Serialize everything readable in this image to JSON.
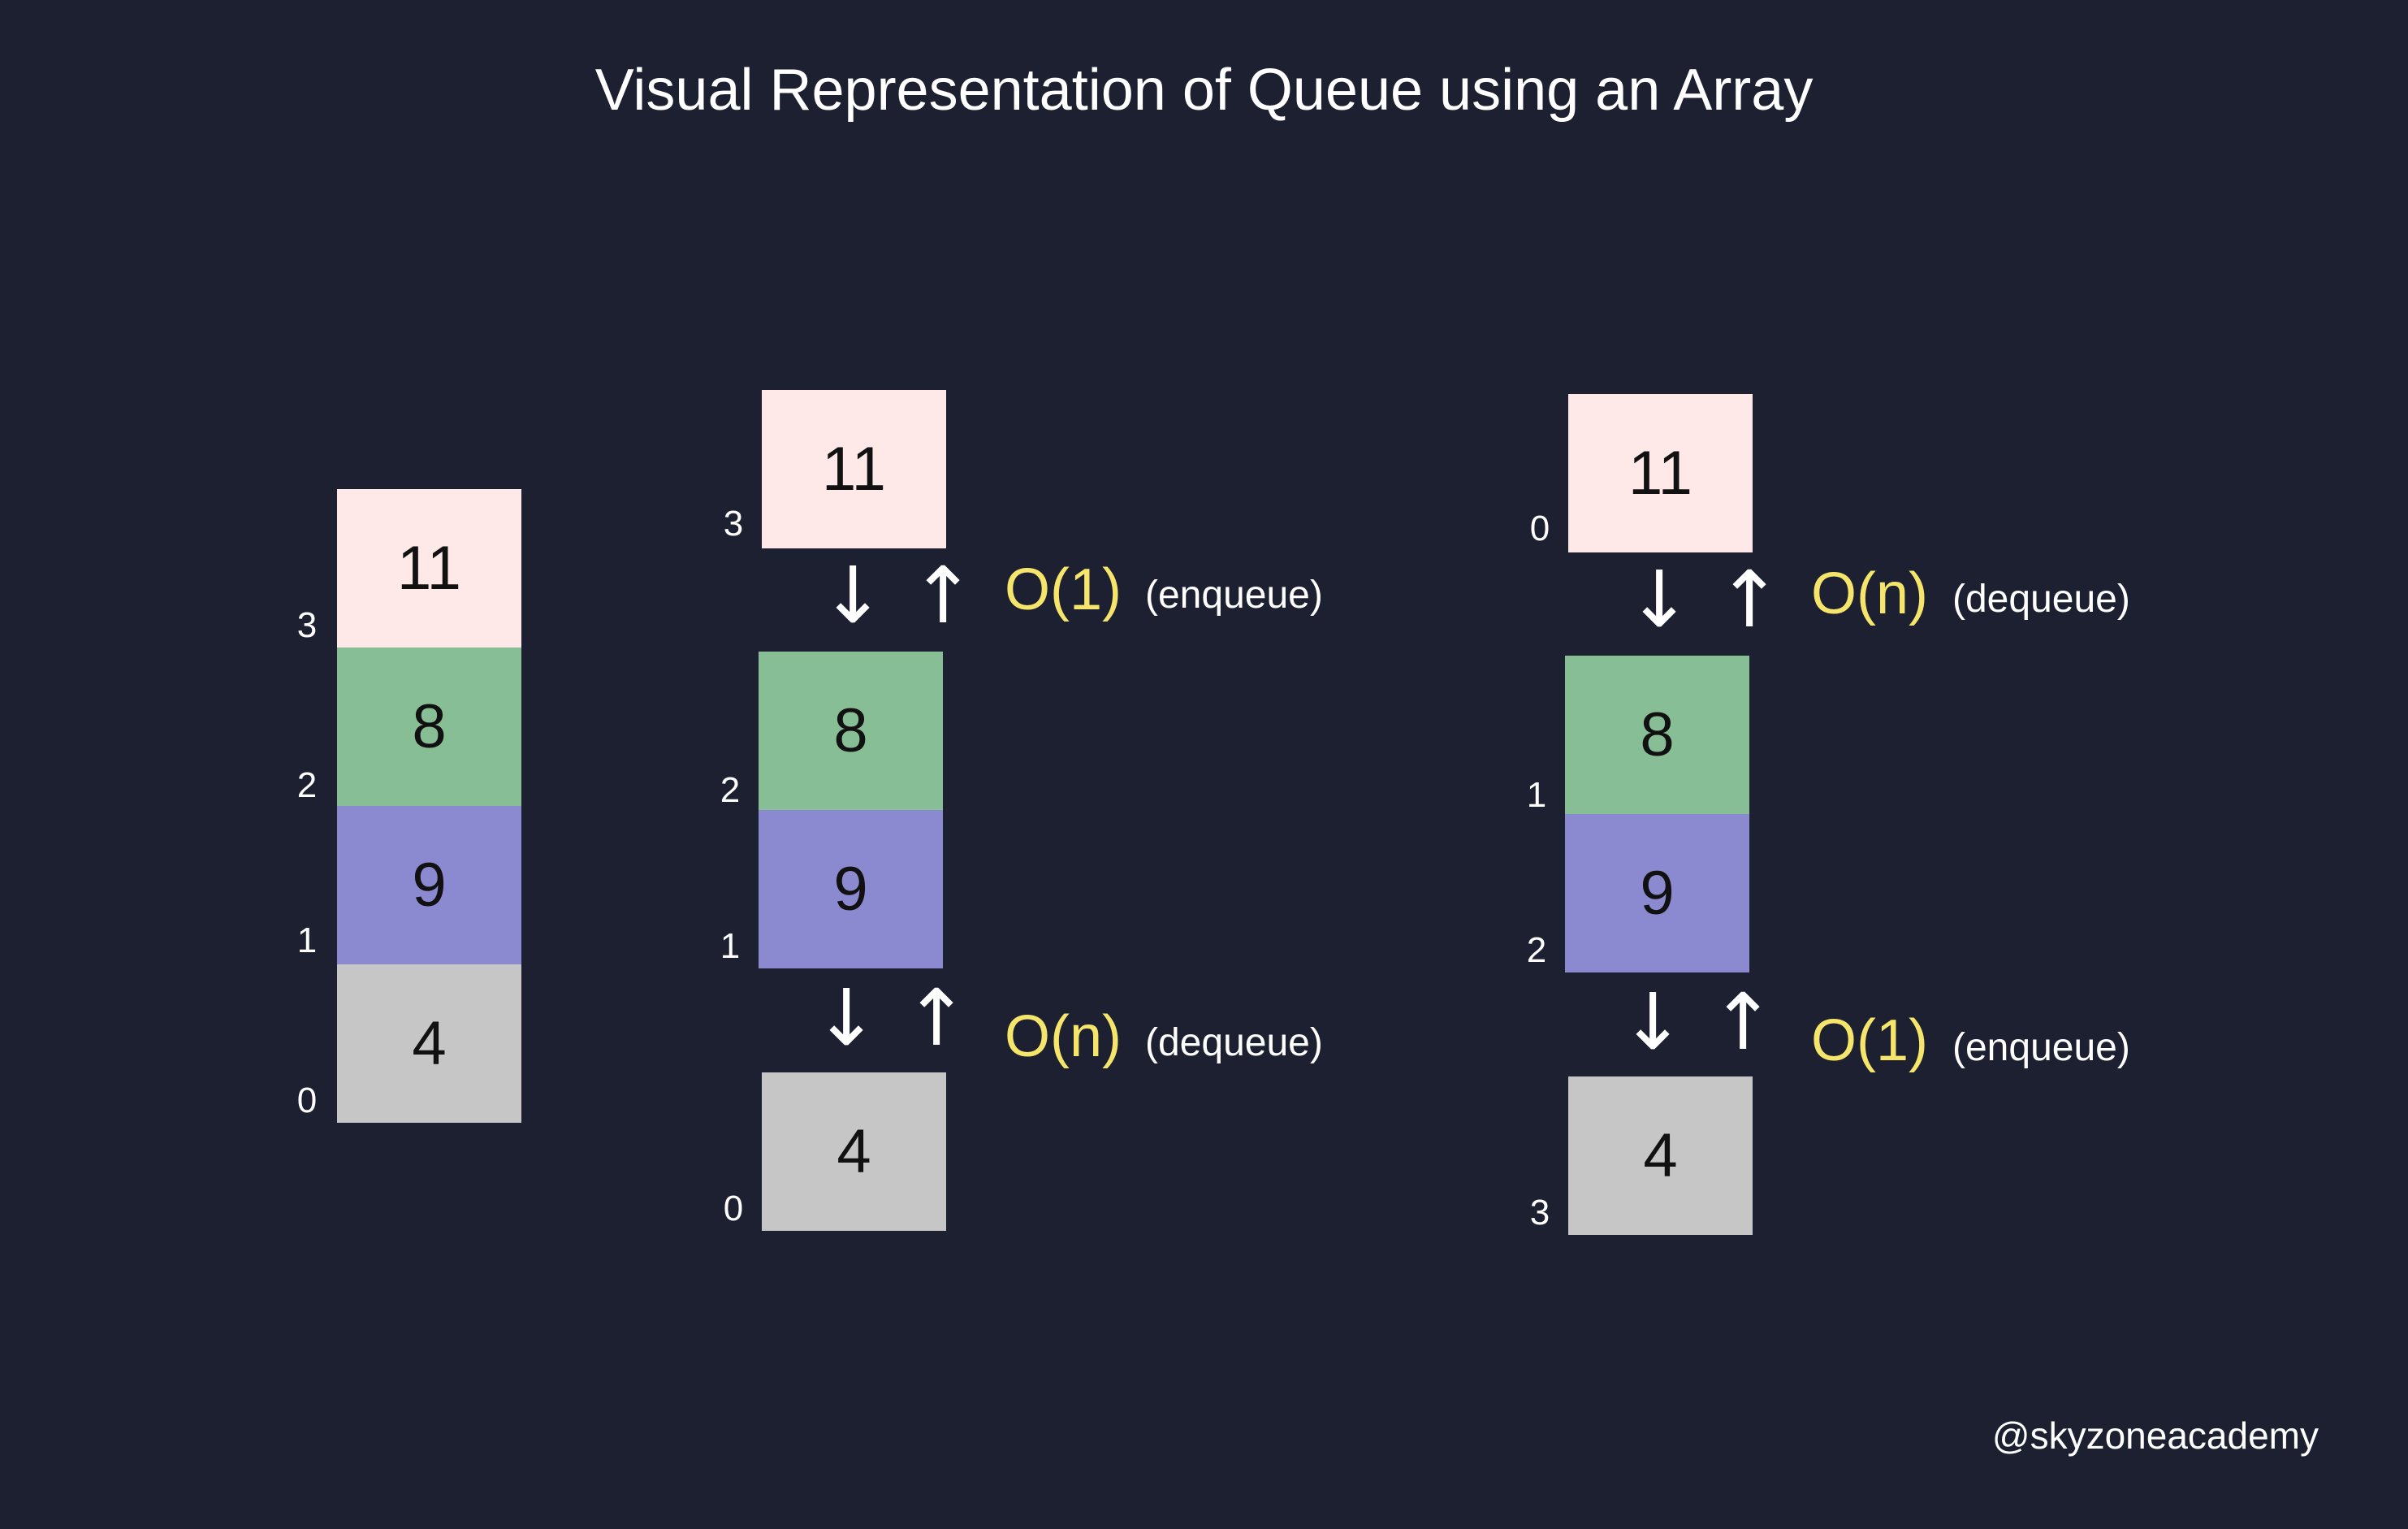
{
  "title": "Visual Representation of Queue using an Array",
  "colors": {
    "background": "#1c2030",
    "cell_11": "#ffe8e8",
    "cell_8": "#88be95",
    "cell_9": "#8b89cf",
    "cell_4": "#c6c6c6",
    "complexity": "#f5e56b"
  },
  "stack": {
    "cells": [
      {
        "value": "11",
        "index": "3"
      },
      {
        "value": "8",
        "index": "2"
      },
      {
        "value": "9",
        "index": "1"
      },
      {
        "value": "4",
        "index": "0"
      }
    ]
  },
  "queue_a": {
    "top_cell": {
      "value": "11",
      "index": "3"
    },
    "middle_cells": [
      {
        "value": "8",
        "index": "2"
      },
      {
        "value": "9",
        "index": "1"
      }
    ],
    "bottom_cell": {
      "value": "4",
      "index": "0"
    },
    "top_arrows": "↓ ↑",
    "bottom_arrows": "↓ ↑",
    "top_complexity": "O(1)",
    "top_operation": "(enqueue)",
    "bottom_complexity": "O(n)",
    "bottom_operation": "(dequeue)"
  },
  "queue_b": {
    "top_cell": {
      "value": "11",
      "index": "0"
    },
    "middle_cells": [
      {
        "value": "8",
        "index": "1"
      },
      {
        "value": "9",
        "index": "2"
      }
    ],
    "bottom_cell": {
      "value": "4",
      "index": "3"
    },
    "top_arrows": "↓ ↑",
    "bottom_arrows": "↓ ↑",
    "top_complexity": "O(n)",
    "top_operation": "(dequeue)",
    "bottom_complexity": "O(1)",
    "bottom_operation": "(enqueue)"
  },
  "watermark": "@skyzoneacademy"
}
